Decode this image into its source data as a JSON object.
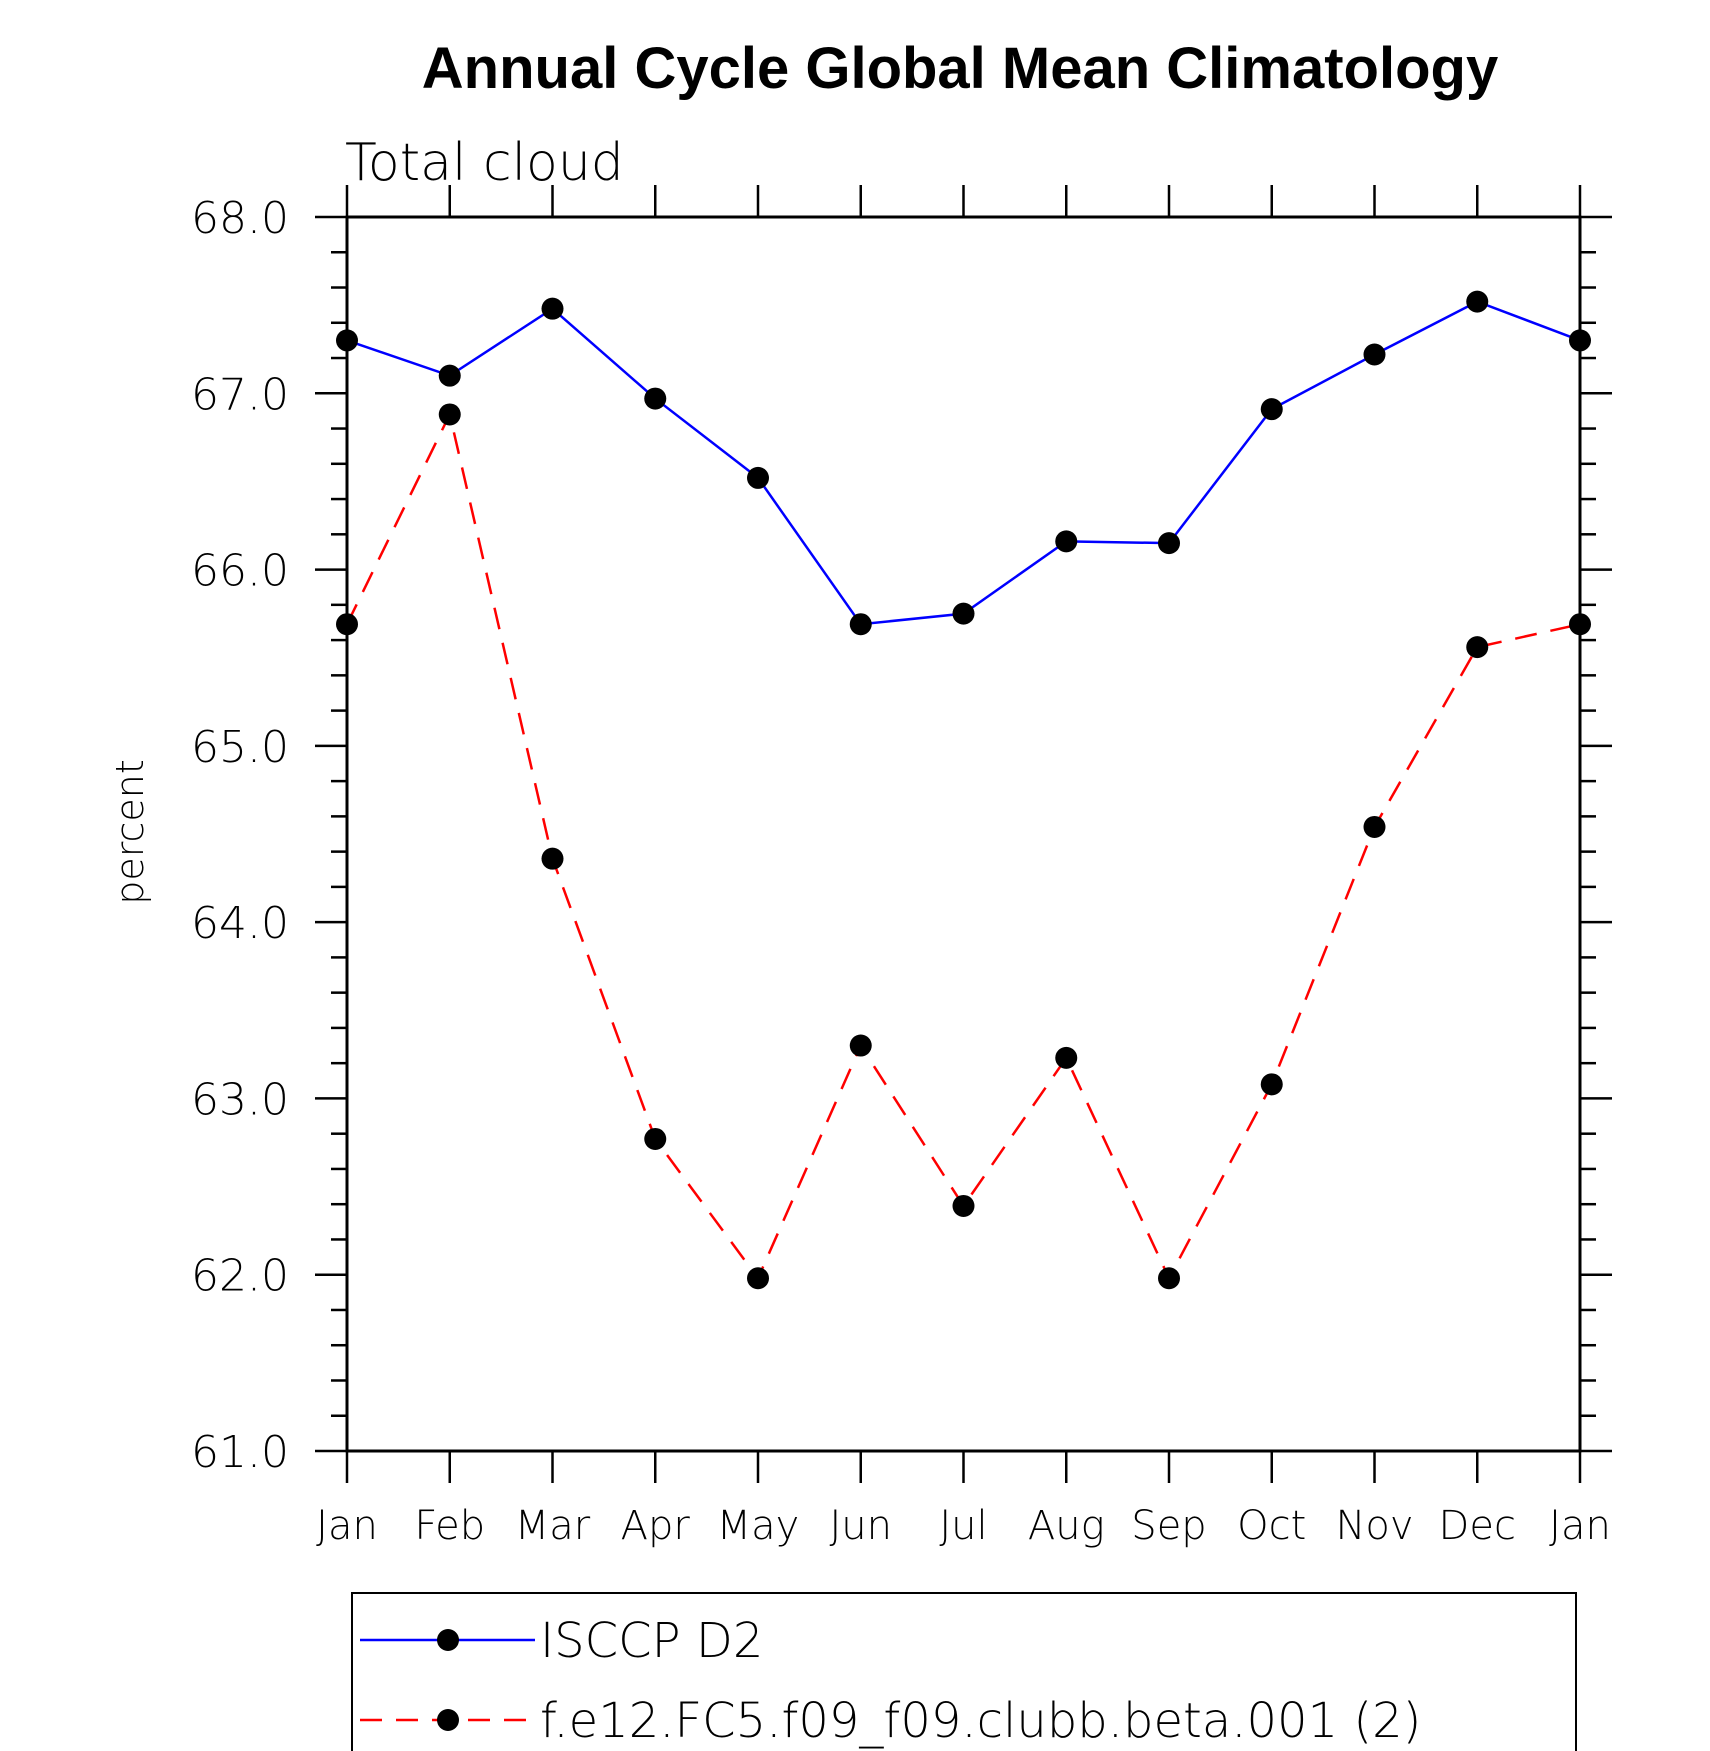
{
  "chart_data": {
    "type": "line",
    "title": "Annual Cycle Global Mean Climatology",
    "subtitle": "Total cloud",
    "xlabel": "",
    "ylabel": "percent",
    "ylim": [
      61.0,
      68.0
    ],
    "yticks": [
      "61.0",
      "62.0",
      "63.0",
      "64.0",
      "65.0",
      "66.0",
      "67.0",
      "68.0"
    ],
    "categories": [
      "Jan",
      "Feb",
      "Mar",
      "Apr",
      "May",
      "Jun",
      "Jul",
      "Aug",
      "Sep",
      "Oct",
      "Nov",
      "Dec",
      "Jan"
    ],
    "series": [
      {
        "name": "ISCCP D2",
        "color": "#0000ff",
        "dash": "solid",
        "values": [
          67.3,
          67.1,
          67.48,
          66.97,
          66.52,
          65.69,
          65.75,
          66.16,
          66.15,
          66.91,
          67.22,
          67.52,
          67.3
        ]
      },
      {
        "name": "f.e12.FC5.f09_f09.clubb.beta.001 (2)",
        "color": "#ff0000",
        "dash": "dashed",
        "values": [
          65.69,
          66.88,
          64.36,
          62.77,
          61.98,
          63.3,
          62.39,
          63.23,
          61.98,
          63.08,
          64.54,
          65.56,
          65.69
        ]
      }
    ],
    "grid": false,
    "legend_position": "bottom"
  }
}
